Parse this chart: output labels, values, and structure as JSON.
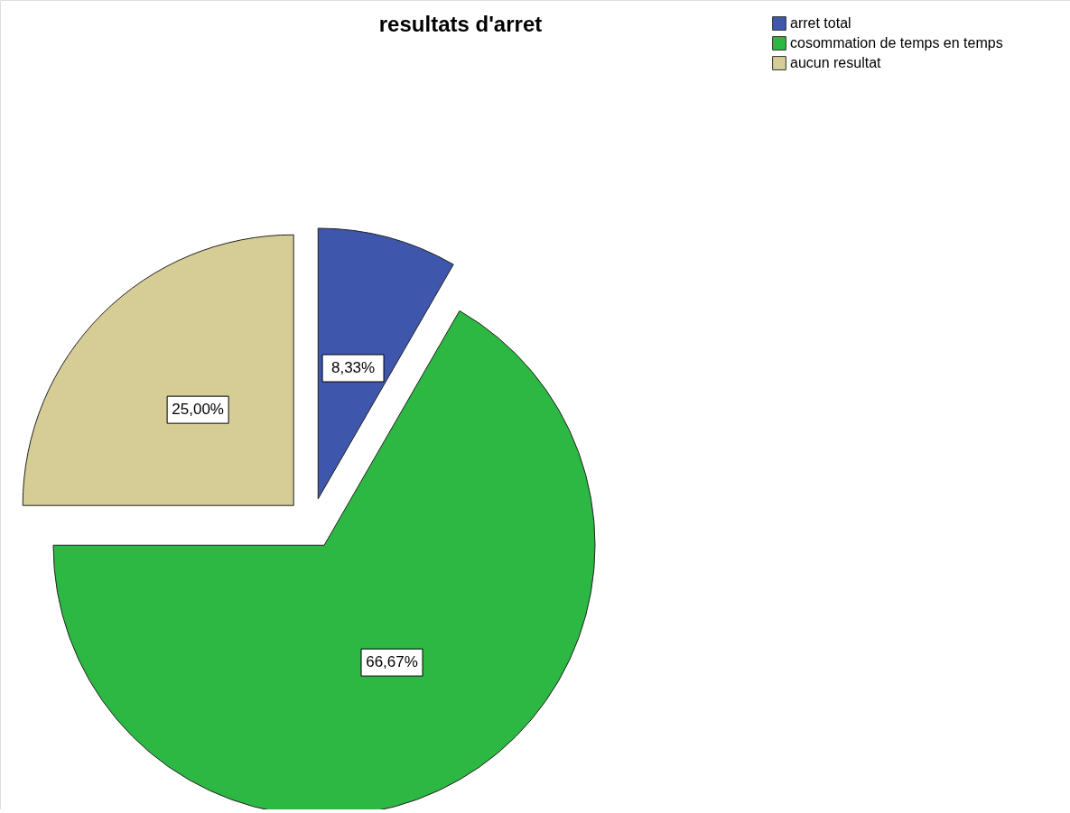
{
  "chart_data": {
    "type": "pie",
    "title": "resultats d'arret",
    "categories": [
      "arret total",
      "cosommation de temps en temps",
      "aucun resultat"
    ],
    "values": [
      8.33,
      66.67,
      25.0
    ],
    "value_labels": [
      "8,33%",
      "66,67%",
      "25,00%"
    ],
    "colors": [
      "#3e56ac",
      "#2db843",
      "#d5cd95"
    ],
    "legend": "top right"
  }
}
